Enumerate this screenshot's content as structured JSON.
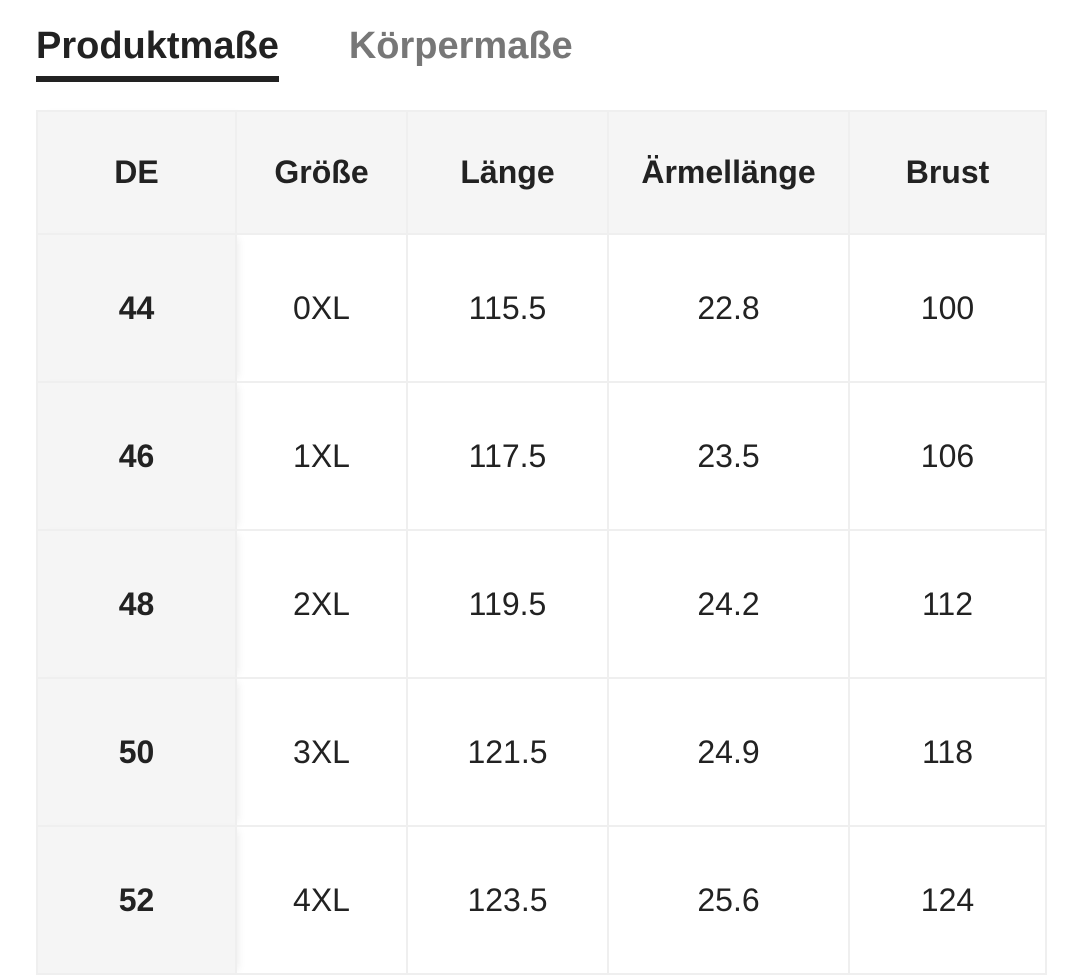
{
  "tabs": {
    "items": [
      "Produktmaße",
      "Körpermaße"
    ],
    "active": 0
  },
  "table": {
    "header": [
      "DE",
      "Größe",
      "Länge",
      "Ärmellänge",
      "Brust"
    ],
    "rows": [
      [
        "44",
        "0XL",
        "115.5",
        "22.8",
        "100"
      ],
      [
        "46",
        "1XL",
        "117.5",
        "23.5",
        "106"
      ],
      [
        "48",
        "2XL",
        "119.5",
        "24.2",
        "112"
      ],
      [
        "50",
        "3XL",
        "121.5",
        "24.9",
        "118"
      ],
      [
        "52",
        "4XL",
        "123.5",
        "25.6",
        "124"
      ]
    ]
  }
}
